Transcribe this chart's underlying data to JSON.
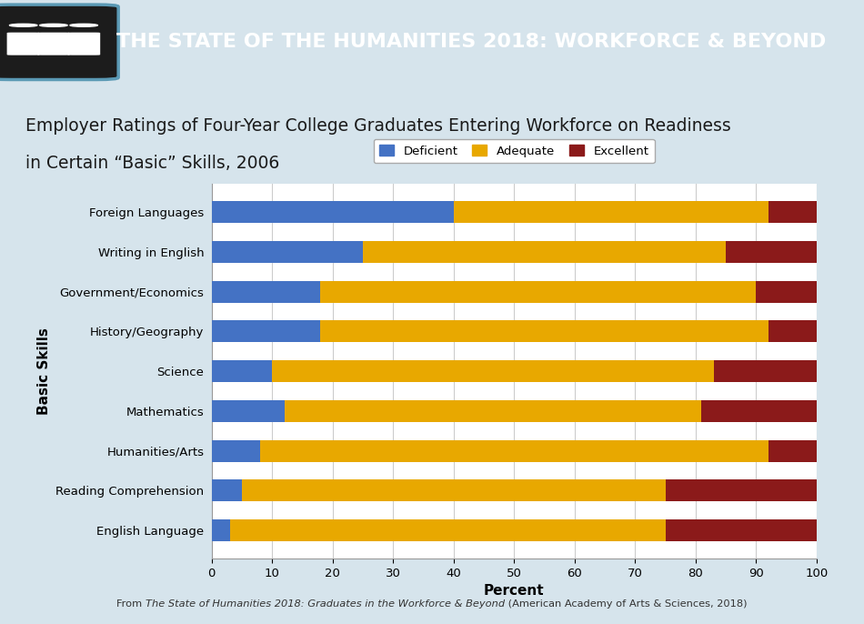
{
  "categories": [
    "Foreign Languages",
    "Writing in English",
    "Government/Economics",
    "History/Geography",
    "Science",
    "Mathematics",
    "Humanities/Arts",
    "Reading Comprehension",
    "English Language"
  ],
  "deficient": [
    40,
    25,
    18,
    18,
    10,
    12,
    8,
    5,
    3
  ],
  "adequate": [
    52,
    60,
    72,
    74,
    73,
    69,
    84,
    70,
    72
  ],
  "excellent": [
    8,
    15,
    10,
    8,
    17,
    19,
    8,
    25,
    25
  ],
  "color_deficient": "#4472C4",
  "color_adequate": "#E8A800",
  "color_excellent": "#8B1A1A",
  "title_line1": "Employer Ratings of Four-Year College Graduates Entering Workforce on Readiness",
  "title_line2": "in Certain “Basic” Skills, 2006",
  "xlabel": "Percent",
  "ylabel": "Basic Skills",
  "header_text": "THE STATE OF THE HUMANITIES 2018: WORKFORCE & BEYOND",
  "footer_plain1": "From ",
  "footer_italic": "The State of Humanities 2018: Graduates in the Workforce & Beyond",
  "footer_plain2": " (American Academy of Arts & Sciences, 2018)",
  "header_bg": "#1c1c1c",
  "header_accent": "#5b9ab5",
  "outer_bg": "#d6e4ec",
  "bar_bg": "#ffffff",
  "xlim": [
    0,
    100
  ],
  "xticks": [
    0,
    10,
    20,
    30,
    40,
    50,
    60,
    70,
    80,
    90,
    100
  ]
}
